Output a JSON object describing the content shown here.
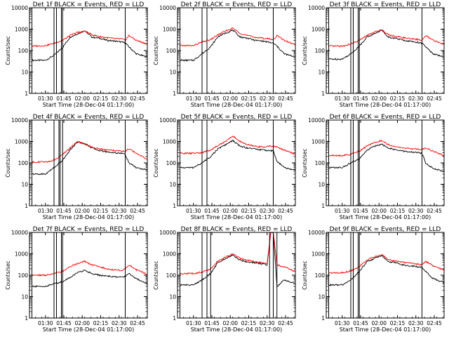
{
  "figure": {
    "colors": {
      "events": "#000000",
      "lld": "#ff0000"
    },
    "y_axis_label": "Counts/sec",
    "x_axis_label": "Start Time (28-Dec-04 01:17:00)"
  },
  "chart_data": [
    {
      "type": "line",
      "title": "Det 1f BLACK = Events, RED = LLD",
      "xlabel": "Start Time (28-Dec-04 01:17:00)",
      "ylabel": "Counts/sec",
      "y_scale": "log",
      "ylim": [
        1,
        10000
      ],
      "yticks": [
        1,
        10,
        100,
        1000,
        10000
      ],
      "xlim": [
        "01:17",
        "02:53"
      ],
      "xticks": [
        "01:30",
        "01:45",
        "02:00",
        "02:15",
        "02:30",
        "02:45"
      ],
      "vertical_markers": [
        "01:19",
        "01:37",
        "01:39",
        "01:43",
        "01:44",
        "02:35"
      ],
      "series": [
        {
          "name": "Events",
          "color": "#000000",
          "x": [
            "01:19",
            "01:30",
            "01:37",
            "01:44",
            "01:50",
            "01:56",
            "02:02",
            "02:08",
            "02:14",
            "02:20",
            "02:26",
            "02:32",
            "02:35",
            "02:38",
            "02:44",
            "02:53"
          ],
          "y": [
            35,
            35,
            60,
            140,
            420,
            600,
            850,
            420,
            380,
            300,
            280,
            250,
            230,
            150,
            70,
            50
          ]
        },
        {
          "name": "LLD",
          "color": "#ff0000",
          "x": [
            "01:19",
            "01:30",
            "01:37",
            "01:44",
            "01:50",
            "01:56",
            "02:02",
            "02:08",
            "02:14",
            "02:20",
            "02:26",
            "02:32",
            "02:35",
            "02:38",
            "02:44",
            "02:53"
          ],
          "y": [
            160,
            170,
            220,
            300,
            500,
            700,
            800,
            550,
            450,
            400,
            360,
            350,
            300,
            500,
            300,
            200
          ]
        }
      ]
    },
    {
      "type": "line",
      "title": "Det 2f BLACK = Events, RED = LLD",
      "xlabel": "Start Time (28-Dec-04 01:17:00)",
      "ylabel": "Counts/sec",
      "y_scale": "log",
      "ylim": [
        1,
        10000
      ],
      "yticks": [
        1,
        10,
        100,
        1000,
        10000
      ],
      "xlim": [
        "01:17",
        "02:53"
      ],
      "xticks": [
        "01:30",
        "01:45",
        "02:00",
        "02:15",
        "02:30",
        "02:45"
      ],
      "vertical_markers": [
        "01:19",
        "01:37",
        "01:41",
        "02:35"
      ],
      "series": [
        {
          "name": "Events",
          "color": "#000000",
          "x": [
            "01:19",
            "01:30",
            "01:37",
            "01:44",
            "01:50",
            "01:56",
            "02:02",
            "02:08",
            "02:14",
            "02:20",
            "02:26",
            "02:32",
            "02:35",
            "02:38",
            "02:44",
            "02:53"
          ],
          "y": [
            35,
            35,
            70,
            150,
            450,
            650,
            900,
            430,
            380,
            300,
            280,
            240,
            220,
            160,
            70,
            50
          ]
        },
        {
          "name": "LLD",
          "color": "#ff0000",
          "x": [
            "01:19",
            "01:30",
            "01:37",
            "01:44",
            "01:50",
            "01:56",
            "02:02",
            "02:08",
            "02:14",
            "02:20",
            "02:26",
            "02:32",
            "02:35",
            "02:38",
            "02:44",
            "02:53"
          ],
          "y": [
            170,
            170,
            250,
            320,
            550,
            800,
            1100,
            650,
            500,
            420,
            380,
            350,
            320,
            500,
            300,
            180
          ]
        }
      ]
    },
    {
      "type": "line",
      "title": "Det 3f BLACK = Events, RED = LLD",
      "xlabel": "Start Time (28-Dec-04 01:17:00)",
      "ylabel": "Counts/sec",
      "y_scale": "log",
      "ylim": [
        1,
        10000
      ],
      "yticks": [
        1,
        10,
        100,
        1000,
        10000
      ],
      "xlim": [
        "01:17",
        "02:53"
      ],
      "xticks": [
        "01:30",
        "01:45",
        "02:00",
        "02:15",
        "02:30",
        "02:45"
      ],
      "vertical_markers": [
        "01:19",
        "01:37",
        "01:39",
        "01:43",
        "01:44",
        "02:35"
      ],
      "series": [
        {
          "name": "Events",
          "color": "#000000",
          "x": [
            "01:19",
            "01:30",
            "01:37",
            "01:44",
            "01:50",
            "01:56",
            "02:02",
            "02:08",
            "02:14",
            "02:20",
            "02:26",
            "02:32",
            "02:35",
            "02:38",
            "02:44",
            "02:53"
          ],
          "y": [
            40,
            40,
            70,
            160,
            420,
            600,
            900,
            420,
            370,
            300,
            270,
            240,
            220,
            150,
            70,
            50
          ]
        },
        {
          "name": "LLD",
          "color": "#ff0000",
          "x": [
            "01:19",
            "01:30",
            "01:37",
            "01:44",
            "01:50",
            "01:56",
            "02:02",
            "02:08",
            "02:14",
            "02:20",
            "02:26",
            "02:32",
            "02:35",
            "02:38",
            "02:44",
            "02:53"
          ],
          "y": [
            160,
            160,
            200,
            300,
            500,
            700,
            950,
            550,
            450,
            400,
            350,
            330,
            300,
            500,
            300,
            200
          ]
        }
      ]
    },
    {
      "type": "line",
      "title": "Det 4f BLACK = Events, RED = LLD",
      "xlabel": "Start Time (28-Dec-04 01:17:00)",
      "ylabel": "Counts/sec",
      "y_scale": "log",
      "ylim": [
        1,
        10000
      ],
      "yticks": [
        1,
        10,
        100,
        1000,
        10000
      ],
      "xlim": [
        "01:17",
        "02:53"
      ],
      "xticks": [
        "01:30",
        "01:45",
        "02:00",
        "02:15",
        "02:30",
        "02:45"
      ],
      "vertical_markers": [
        "01:19",
        "01:37",
        "01:41",
        "01:42",
        "01:44",
        "02:35"
      ],
      "series": [
        {
          "name": "Events",
          "color": "#000000",
          "x": [
            "01:19",
            "01:30",
            "01:37",
            "01:44",
            "01:50",
            "01:56",
            "02:02",
            "02:08",
            "02:14",
            "02:20",
            "02:26",
            "02:32",
            "02:35",
            "02:38",
            "02:44",
            "02:53"
          ],
          "y": [
            30,
            30,
            60,
            130,
            400,
            950,
            800,
            500,
            380,
            330,
            300,
            280,
            250,
            100,
            60,
            45
          ]
        },
        {
          "name": "LLD",
          "color": "#ff0000",
          "x": [
            "01:19",
            "01:30",
            "01:37",
            "01:44",
            "01:50",
            "01:56",
            "02:02",
            "02:08",
            "02:14",
            "02:20",
            "02:26",
            "02:32",
            "02:35",
            "02:38",
            "02:44",
            "02:53"
          ],
          "y": [
            110,
            110,
            130,
            250,
            500,
            1000,
            750,
            550,
            450,
            400,
            380,
            350,
            350,
            450,
            280,
            150
          ]
        }
      ]
    },
    {
      "type": "line",
      "title": "Det 5f BLACK = Events, RED = LLD",
      "xlabel": "Start Time (28-Dec-04 01:17:00)",
      "ylabel": "Counts/sec",
      "y_scale": "log",
      "ylim": [
        1,
        10000
      ],
      "yticks": [
        1,
        10,
        100,
        1000,
        10000
      ],
      "xlim": [
        "01:17",
        "02:53"
      ],
      "xticks": [
        "01:30",
        "01:45",
        "02:00",
        "02:15",
        "02:30",
        "02:45"
      ],
      "vertical_markers": [
        "01:19",
        "01:37",
        "01:41",
        "02:35"
      ],
      "series": [
        {
          "name": "Events",
          "color": "#000000",
          "x": [
            "01:19",
            "01:30",
            "01:37",
            "01:44",
            "01:50",
            "01:56",
            "02:02",
            "02:08",
            "02:14",
            "02:20",
            "02:26",
            "02:32",
            "02:35",
            "02:38",
            "02:44",
            "02:53"
          ],
          "y": [
            60,
            60,
            100,
            200,
            450,
            700,
            1100,
            600,
            500,
            450,
            400,
            380,
            360,
            120,
            60,
            45
          ]
        },
        {
          "name": "LLD",
          "color": "#ff0000",
          "x": [
            "01:19",
            "01:30",
            "01:37",
            "01:44",
            "01:50",
            "01:56",
            "02:02",
            "02:08",
            "02:14",
            "02:20",
            "02:26",
            "02:32",
            "02:35",
            "02:38",
            "02:44",
            "02:53"
          ],
          "y": [
            280,
            280,
            300,
            400,
            650,
            1000,
            1800,
            1000,
            700,
            600,
            550,
            600,
            600,
            550,
            400,
            250
          ]
        }
      ]
    },
    {
      "type": "line",
      "title": "Det 6f BLACK = Events, RED = LLD",
      "xlabel": "Start Time (28-Dec-04 01:17:00)",
      "ylabel": "Counts/sec",
      "y_scale": "log",
      "ylim": [
        1,
        10000
      ],
      "yticks": [
        1,
        10,
        100,
        1000,
        10000
      ],
      "xlim": [
        "01:17",
        "02:53"
      ],
      "xticks": [
        "01:30",
        "01:45",
        "02:00",
        "02:15",
        "02:30",
        "02:45"
      ],
      "vertical_markers": [
        "01:19",
        "01:37",
        "01:39",
        "01:43",
        "01:44",
        "02:35"
      ],
      "series": [
        {
          "name": "Events",
          "color": "#000000",
          "x": [
            "01:19",
            "01:30",
            "01:37",
            "01:44",
            "01:50",
            "01:56",
            "02:02",
            "02:08",
            "02:14",
            "02:20",
            "02:26",
            "02:32",
            "02:35",
            "02:38",
            "02:44",
            "02:53"
          ],
          "y": [
            60,
            60,
            100,
            150,
            380,
            600,
            750,
            480,
            400,
            350,
            320,
            300,
            280,
            100,
            55,
            40
          ]
        },
        {
          "name": "LLD",
          "color": "#ff0000",
          "x": [
            "01:19",
            "01:30",
            "01:37",
            "01:44",
            "01:50",
            "01:56",
            "02:02",
            "02:08",
            "02:14",
            "02:20",
            "02:26",
            "02:32",
            "02:35",
            "02:38",
            "02:44",
            "02:53"
          ],
          "y": [
            220,
            220,
            250,
            350,
            600,
            900,
            1100,
            700,
            550,
            500,
            450,
            450,
            420,
            500,
            350,
            220
          ]
        }
      ]
    },
    {
      "type": "line",
      "title": "Det 7f BLACK = Events, RED = LLD",
      "xlabel": "Start Time (28-Dec-04 01:17:00)",
      "ylabel": "Counts/sec",
      "y_scale": "log",
      "ylim": [
        1,
        10000
      ],
      "yticks": [
        1,
        10,
        100,
        1000,
        10000
      ],
      "xlim": [
        "01:17",
        "02:53"
      ],
      "xticks": [
        "01:30",
        "01:45",
        "02:00",
        "02:15",
        "02:30",
        "02:45"
      ],
      "vertical_markers": [
        "01:19",
        "01:37",
        "01:39",
        "01:43",
        "01:44",
        "02:35"
      ],
      "series": [
        {
          "name": "Events",
          "color": "#000000",
          "x": [
            "01:19",
            "01:30",
            "01:37",
            "01:44",
            "01:50",
            "01:56",
            "02:02",
            "02:08",
            "02:14",
            "02:20",
            "02:26",
            "02:32",
            "02:35",
            "02:38",
            "02:44",
            "02:53"
          ],
          "y": [
            30,
            30,
            40,
            50,
            80,
            130,
            170,
            120,
            100,
            90,
            85,
            80,
            90,
            120,
            70,
            40
          ]
        },
        {
          "name": "LLD",
          "color": "#ff0000",
          "x": [
            "01:19",
            "01:30",
            "01:37",
            "01:44",
            "01:50",
            "01:56",
            "02:02",
            "02:08",
            "02:14",
            "02:20",
            "02:26",
            "02:32",
            "02:35",
            "02:38",
            "02:44",
            "02:53"
          ],
          "y": [
            100,
            100,
            120,
            150,
            250,
            350,
            450,
            300,
            250,
            200,
            180,
            170,
            200,
            300,
            180,
            110
          ]
        }
      ]
    },
    {
      "type": "line",
      "title": "Det 8f BLACK = Events, RED = LLD",
      "xlabel": "Start Time (28-Dec-04 01:17:00)",
      "ylabel": "Counts/sec",
      "y_scale": "log",
      "ylim": [
        1,
        10000
      ],
      "yticks": [
        1,
        10,
        100,
        1000,
        10000
      ],
      "xlim": [
        "01:17",
        "02:53"
      ],
      "xticks": [
        "01:30",
        "01:45",
        "02:00",
        "02:15",
        "02:30",
        "02:45"
      ],
      "vertical_markers": [
        "01:19",
        "01:37",
        "01:41",
        "01:44",
        "02:32",
        "02:35",
        "02:38"
      ],
      "series": [
        {
          "name": "Events",
          "color": "#000000",
          "x": [
            "01:19",
            "01:30",
            "01:37",
            "01:44",
            "01:50",
            "01:56",
            "02:02",
            "02:08",
            "02:14",
            "02:20",
            "02:26",
            "02:30",
            "02:33",
            "02:35",
            "02:38",
            "02:44",
            "02:53"
          ],
          "y": [
            35,
            35,
            60,
            120,
            400,
            600,
            900,
            500,
            420,
            380,
            340,
            300,
            10000,
            10000,
            30,
            60,
            40
          ]
        },
        {
          "name": "LLD",
          "color": "#ff0000",
          "x": [
            "01:19",
            "01:30",
            "01:37",
            "01:44",
            "01:50",
            "01:56",
            "02:02",
            "02:08",
            "02:14",
            "02:20",
            "02:26",
            "02:30",
            "02:33",
            "02:35",
            "02:38",
            "02:44",
            "02:53"
          ],
          "y": [
            120,
            120,
            140,
            200,
            450,
            700,
            1000,
            600,
            500,
            420,
            380,
            350,
            10000,
            10000,
            300,
            250,
            150
          ]
        }
      ]
    },
    {
      "type": "line",
      "title": "Det 9f BLACK = Events, RED = LLD",
      "xlabel": "Start Time (28-Dec-04 01:17:00)",
      "ylabel": "Counts/sec",
      "y_scale": "log",
      "ylim": [
        1,
        10000
      ],
      "yticks": [
        1,
        10,
        100,
        1000,
        10000
      ],
      "xlim": [
        "01:17",
        "02:53"
      ],
      "xticks": [
        "01:30",
        "01:45",
        "02:00",
        "02:15",
        "02:30",
        "02:45"
      ],
      "vertical_markers": [
        "01:19",
        "01:37",
        "01:39",
        "01:43",
        "01:44",
        "02:35"
      ],
      "series": [
        {
          "name": "Events",
          "color": "#000000",
          "x": [
            "01:19",
            "01:30",
            "01:37",
            "01:44",
            "01:50",
            "01:56",
            "02:02",
            "02:08",
            "02:14",
            "02:20",
            "02:26",
            "02:32",
            "02:35",
            "02:38",
            "02:44",
            "02:53"
          ],
          "y": [
            35,
            35,
            60,
            150,
            420,
            600,
            850,
            420,
            380,
            300,
            270,
            250,
            230,
            150,
            70,
            45
          ]
        },
        {
          "name": "LLD",
          "color": "#ff0000",
          "x": [
            "01:19",
            "01:30",
            "01:37",
            "01:44",
            "01:50",
            "01:56",
            "02:02",
            "02:08",
            "02:14",
            "02:20",
            "02:26",
            "02:32",
            "02:35",
            "02:38",
            "02:44",
            "02:53"
          ],
          "y": [
            130,
            130,
            160,
            250,
            500,
            700,
            900,
            550,
            450,
            400,
            360,
            330,
            300,
            450,
            280,
            170
          ]
        }
      ]
    }
  ]
}
